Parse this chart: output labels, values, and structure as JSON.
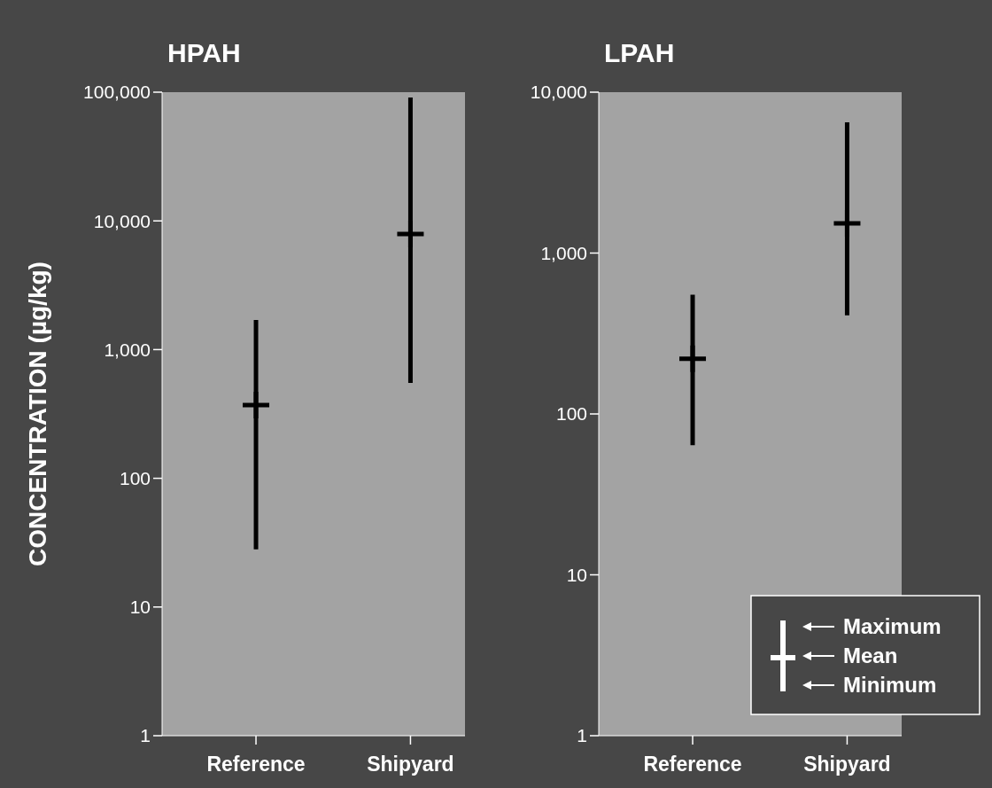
{
  "chart_data": [
    {
      "type": "scatter",
      "title": "HPAH",
      "ylabel": "CONCENTRATION (µg/kg)",
      "categories": [
        "Reference",
        "Shipyard"
      ],
      "log": true,
      "ylim": [
        1,
        100000
      ],
      "yticks": [
        1,
        10,
        100,
        {
          "value": 1000,
          "label": "1,000"
        },
        {
          "value": 10000,
          "label": "10,000"
        },
        {
          "value": 100000,
          "label": "100,000"
        }
      ],
      "color": "#000000",
      "marker": "cross",
      "values": [
        370,
        7900
      ],
      "errors": [
        [
          28,
          1700
        ],
        [
          550,
          91000
        ]
      ]
    },
    {
      "type": "scatter",
      "title": "LPAH",
      "categories": [
        "Reference",
        "Shipyard"
      ],
      "log": true,
      "ylim": [
        1,
        10000
      ],
      "yticks": [
        1,
        10,
        100,
        {
          "value": 1000,
          "label": "1,000"
        },
        {
          "value": 10000,
          "label": "10,000"
        }
      ],
      "color": "#000000",
      "marker": "cross",
      "values": [
        220,
        1530
      ],
      "errors": [
        [
          64,
          550
        ],
        [
          410,
          6500
        ]
      ],
      "annotations": [
        "Maximum",
        "Mean",
        "Minimum"
      ]
    }
  ]
}
